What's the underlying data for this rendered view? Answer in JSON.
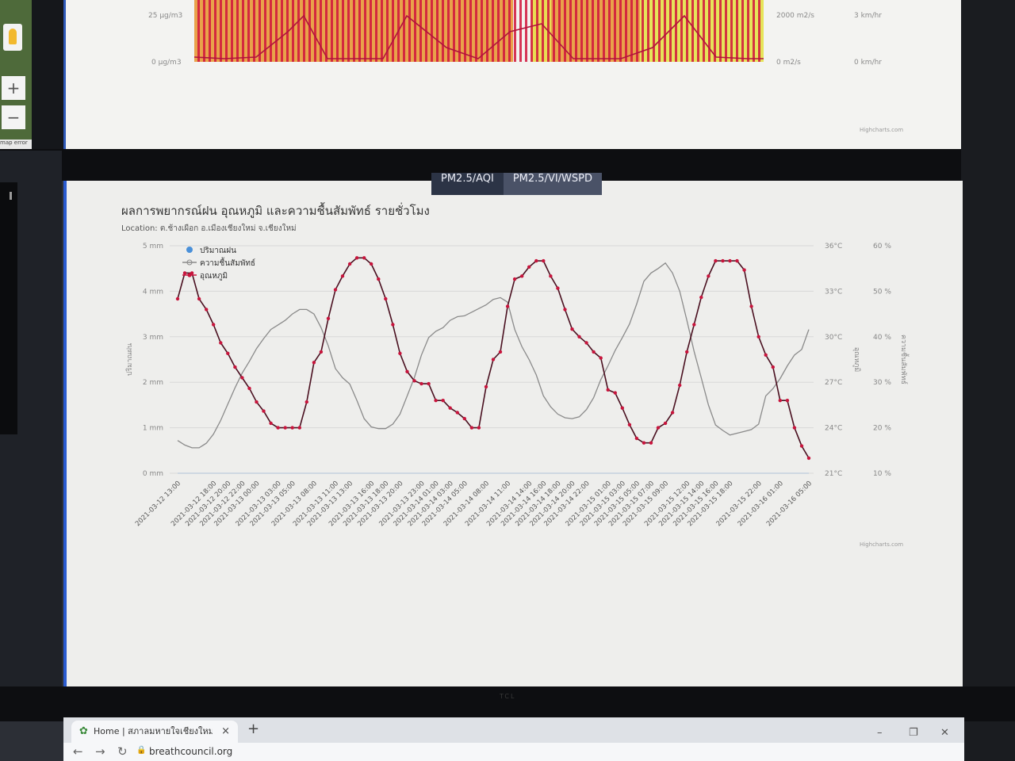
{
  "top_screen": {
    "y_left_labels": [
      "25 µg/m3",
      "0 µg/m3"
    ],
    "y_mid_labels": [
      "2000 m2/s",
      "0 m2/s"
    ],
    "y_right_labels": [
      "3 km/hr",
      "0 km/hr"
    ],
    "credits": "Highcharts.com"
  },
  "map_attribution": "map error",
  "tabs": [
    {
      "label": "PM2.5/AQI",
      "active": false
    },
    {
      "label": "PM2.5/VI/WSPD",
      "active": true
    }
  ],
  "chart": {
    "title": "ผลการพยากรณ์ฝน อุณหภูมิ และความชื้นสัมพัทธ์ รายชั่วโมง",
    "subtitle": "Location: ต.ช้างเผือก อ.เมืองเชียงใหม่ จ.เชียงใหม่",
    "credits": "Highcharts.com"
  },
  "chart_data": {
    "type": "line",
    "x": [
      "2021-03-12 13:00",
      "2021-03-12 14:00",
      "2021-03-12 15:00",
      "2021-03-12 16:00",
      "2021-03-12 17:00",
      "2021-03-12 18:00",
      "2021-03-12 19:00",
      "2021-03-12 20:00",
      "2021-03-12 21:00",
      "2021-03-12 22:00",
      "2021-03-12 23:00",
      "2021-03-13 00:00",
      "2021-03-13 01:00",
      "2021-03-13 02:00",
      "2021-03-13 03:00",
      "2021-03-13 04:00",
      "2021-03-13 05:00",
      "2021-03-13 06:00",
      "2021-03-13 07:00",
      "2021-03-13 08:00",
      "2021-03-13 09:00",
      "2021-03-13 10:00",
      "2021-03-13 11:00",
      "2021-03-13 12:00",
      "2021-03-13 13:00",
      "2021-03-13 14:00",
      "2021-03-13 15:00",
      "2021-03-13 16:00",
      "2021-03-13 17:00",
      "2021-03-13 18:00",
      "2021-03-13 19:00",
      "2021-03-13 20:00",
      "2021-03-13 21:00",
      "2021-03-13 22:00",
      "2021-03-13 23:00",
      "2021-03-14 00:00",
      "2021-03-14 01:00",
      "2021-03-14 02:00",
      "2021-03-14 03:00",
      "2021-03-14 04:00",
      "2021-03-14 05:00",
      "2021-03-14 06:00",
      "2021-03-14 07:00",
      "2021-03-14 08:00",
      "2021-03-14 09:00",
      "2021-03-14 10:00",
      "2021-03-14 11:00",
      "2021-03-14 12:00",
      "2021-03-14 13:00",
      "2021-03-14 14:00",
      "2021-03-14 15:00",
      "2021-03-14 16:00",
      "2021-03-14 17:00",
      "2021-03-14 18:00",
      "2021-03-14 19:00",
      "2021-03-14 20:00",
      "2021-03-14 21:00",
      "2021-03-14 22:00",
      "2021-03-14 23:00",
      "2021-03-15 00:00",
      "2021-03-15 01:00",
      "2021-03-15 02:00",
      "2021-03-15 03:00",
      "2021-03-15 04:00",
      "2021-03-15 05:00",
      "2021-03-15 06:00",
      "2021-03-15 07:00",
      "2021-03-15 08:00",
      "2021-03-15 09:00",
      "2021-03-15 10:00",
      "2021-03-15 11:00",
      "2021-03-15 12:00",
      "2021-03-15 13:00",
      "2021-03-15 14:00",
      "2021-03-15 15:00",
      "2021-03-15 16:00",
      "2021-03-15 17:00",
      "2021-03-15 18:00",
      "2021-03-15 19:00",
      "2021-03-15 20:00",
      "2021-03-15 21:00",
      "2021-03-15 22:00",
      "2021-03-15 23:00",
      "2021-03-16 00:00",
      "2021-03-16 01:00",
      "2021-03-16 02:00",
      "2021-03-16 03:00",
      "2021-03-16 04:00",
      "2021-03-16 05:00"
    ],
    "x_tick_labels": [
      "2021-03-12 13:00",
      "2021-03-12 18:00",
      "2021-03-12 20:00",
      "2021-03-12 22:00",
      "2021-03-13 00:00",
      "2021-03-13 03:00",
      "2021-03-13 05:00",
      "2021-03-13 08:00",
      "2021-03-13 11:00",
      "2021-03-13 13:00",
      "2021-03-13 16:00",
      "2021-03-13 18:00",
      "2021-03-13 20:00",
      "2021-03-13 23:00",
      "2021-03-14 01:00",
      "2021-03-14 03:00",
      "2021-03-14 05:00",
      "2021-03-14 08:00",
      "2021-03-14 11:00",
      "2021-03-14 14:00",
      "2021-03-14 16:00",
      "2021-03-14 18:00",
      "2021-03-14 20:00",
      "2021-03-14 22:00",
      "2021-03-15 01:00",
      "2021-03-15 03:00",
      "2021-03-15 05:00",
      "2021-03-15 07:00",
      "2021-03-15 09:00",
      "2021-03-15 12:00",
      "2021-03-15 14:00",
      "2021-03-15 16:00",
      "2021-03-15 18:00",
      "2021-03-15 22:00",
      "2021-03-16 01:00",
      "2021-03-16 05:00"
    ],
    "y_axes": [
      {
        "title": "ปริมาณฝน",
        "labels": [
          "5 mm",
          "4 mm",
          "3 mm",
          "2 mm",
          "1 mm",
          "0 mm"
        ],
        "range": [
          0,
          5
        ]
      },
      {
        "title": "อุณหภูมิ",
        "labels": [
          "36°C",
          "33°C",
          "30°C",
          "27°C",
          "24°C",
          "21°C"
        ],
        "range": [
          21,
          36
        ]
      },
      {
        "title": "ความชื้นสัมพัทธ์",
        "labels": [
          "60 %",
          "50 %",
          "40 %",
          "30 %",
          "20 %",
          "10 %"
        ],
        "range": [
          10,
          60
        ]
      }
    ],
    "series": [
      {
        "name": "ปริมาณฝน",
        "axis": 0,
        "color": "#4a90d9",
        "values": [
          0,
          0,
          0,
          0,
          0,
          0,
          0,
          0,
          0,
          0,
          0,
          0,
          0,
          0,
          0,
          0,
          0,
          0,
          0,
          0,
          0,
          0,
          0,
          0,
          0,
          0,
          0,
          0,
          0,
          0,
          0,
          0,
          0,
          0,
          0,
          0,
          0,
          0,
          0,
          0,
          0,
          0,
          0,
          0,
          0,
          0,
          0,
          0,
          0,
          0,
          0,
          0,
          0,
          0,
          0,
          0,
          0,
          0,
          0,
          0,
          0,
          0,
          0,
          0,
          0,
          0,
          0,
          0,
          0,
          0,
          0,
          0,
          0,
          0,
          0,
          0,
          0,
          0,
          0,
          0,
          0,
          0,
          0,
          0,
          0,
          0,
          0,
          0,
          0
        ]
      },
      {
        "name": "ความชื้นสัมพัทธ์",
        "axis": 2,
        "color": "#8a8a8a",
        "values": [
          17.2,
          16.2,
          15.6,
          15.6,
          16.6,
          18.6,
          21.6,
          25.2,
          28.8,
          32.0,
          34.6,
          37.4,
          39.6,
          41.6,
          42.6,
          43.6,
          45.0,
          46.0,
          46.0,
          45.0,
          42.0,
          38.0,
          33.0,
          31.0,
          29.6,
          26.0,
          22.0,
          20.2,
          19.8,
          19.8,
          20.8,
          23.0,
          27.0,
          31.0,
          36.0,
          39.8,
          41.2,
          42.0,
          43.6,
          44.4,
          44.6,
          45.4,
          46.2,
          47.0,
          48.2,
          48.6,
          47.6,
          41.6,
          37.8,
          35.0,
          31.6,
          27.0,
          24.6,
          23.0,
          22.2,
          22.0,
          22.4,
          24.0,
          26.6,
          30.6,
          33.6,
          37.0,
          39.8,
          42.8,
          47.2,
          52.2,
          54.0,
          55.0,
          56.2,
          54.0,
          50.0,
          43.6,
          36.8,
          31.0,
          25.0,
          20.6,
          19.4,
          18.4,
          18.8,
          19.2,
          19.6,
          20.8,
          27.0,
          28.6,
          30.8,
          33.6,
          36.0,
          37.2,
          41.6
        ]
      },
      {
        "name": "อุณหภูมิ",
        "axis": 1,
        "color": "#c8143c",
        "values": [
          32.5,
          34.2,
          34.2,
          32.5,
          31.8,
          30.8,
          29.6,
          28.9,
          28.0,
          27.3,
          26.6,
          25.7,
          25.1,
          24.3,
          24.0,
          24.0,
          24.0,
          24.0,
          25.7,
          28.3,
          29.0,
          31.2,
          33.1,
          34.0,
          34.8,
          35.2,
          35.2,
          34.8,
          33.8,
          32.5,
          30.8,
          28.9,
          27.7,
          27.1,
          26.9,
          26.9,
          25.8,
          25.8,
          25.3,
          25.0,
          24.6,
          24.0,
          24.0,
          26.7,
          28.5,
          29.0,
          32.0,
          33.8,
          34.0,
          34.6,
          35.0,
          35.0,
          34.0,
          33.2,
          31.8,
          30.5,
          30.0,
          29.6,
          29.0,
          28.6,
          26.5,
          26.3,
          25.3,
          24.2,
          23.3,
          23.0,
          23.0,
          24.0,
          24.3,
          25.0,
          26.8,
          29.0,
          30.8,
          32.6,
          34.0,
          35.0,
          35.0,
          35.0,
          35.0,
          34.4,
          32.0,
          30.0,
          28.8,
          28.0,
          25.8,
          25.8,
          24.0,
          22.8,
          22.0
        ]
      }
    ],
    "legend_position": "top-left",
    "grid": true
  },
  "browser": {
    "tab_title": "Home | สภาลมหายใจเชียงใหม่",
    "url": "breathcouncil.org",
    "new_tab": "+",
    "close_tab": "×",
    "minimize": "–",
    "restore": "❐",
    "close_window": "✕",
    "back": "←",
    "forward": "→",
    "reload": "↻",
    "lock": "🔒"
  },
  "colors": {
    "temperature": "#c8143c",
    "humidity": "#8a8a8a",
    "rain": "#4a90d9",
    "screen_border": "#2a5bd0"
  },
  "tv_brand": "TCL"
}
